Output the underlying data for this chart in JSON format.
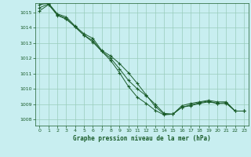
{
  "title": "Graphe pression niveau de la mer (hPa)",
  "background_color": "#c8eef0",
  "plot_bg_color": "#c8eef0",
  "grid_color": "#99ccbb",
  "line_color": "#1a5c2a",
  "marker_color": "#1a5c2a",
  "xlim": [
    -0.5,
    23.5
  ],
  "ylim": [
    1007.6,
    1015.6
  ],
  "yticks": [
    1008,
    1009,
    1010,
    1011,
    1012,
    1013,
    1014,
    1015
  ],
  "xticks": [
    0,
    1,
    2,
    3,
    4,
    5,
    6,
    7,
    8,
    9,
    10,
    11,
    12,
    13,
    14,
    15,
    16,
    17,
    18,
    19,
    20,
    21,
    22,
    23
  ],
  "series": [
    [
      1015.5,
      1015.6,
      1014.9,
      1014.7,
      1014.1,
      1013.6,
      1013.3,
      1012.5,
      1012.15,
      1011.65,
      1011.05,
      1010.35,
      1009.6,
      1008.85,
      1008.35,
      1008.35,
      1008.9,
      1009.05,
      1009.15,
      1009.25,
      1009.15,
      1009.15,
      1008.55,
      1008.55
    ],
    [
      1015.1,
      1015.5,
      1014.85,
      1014.6,
      1014.05,
      1013.5,
      1013.05,
      1012.45,
      1011.85,
      1011.05,
      1010.15,
      1009.45,
      1009.05,
      1008.6,
      1008.3,
      1008.35,
      1008.8,
      1008.9,
      1009.05,
      1009.15,
      1009.05,
      1009.05,
      1008.55,
      1008.55
    ],
    [
      1015.3,
      1015.55,
      1014.8,
      1014.55,
      1014.05,
      1013.5,
      1013.15,
      1012.45,
      1012.0,
      1011.3,
      1010.55,
      1010.0,
      1009.55,
      1009.0,
      1008.4,
      1008.35,
      1008.8,
      1008.95,
      1009.1,
      1009.2,
      1009.05,
      1009.1,
      1008.55,
      1008.55
    ]
  ]
}
